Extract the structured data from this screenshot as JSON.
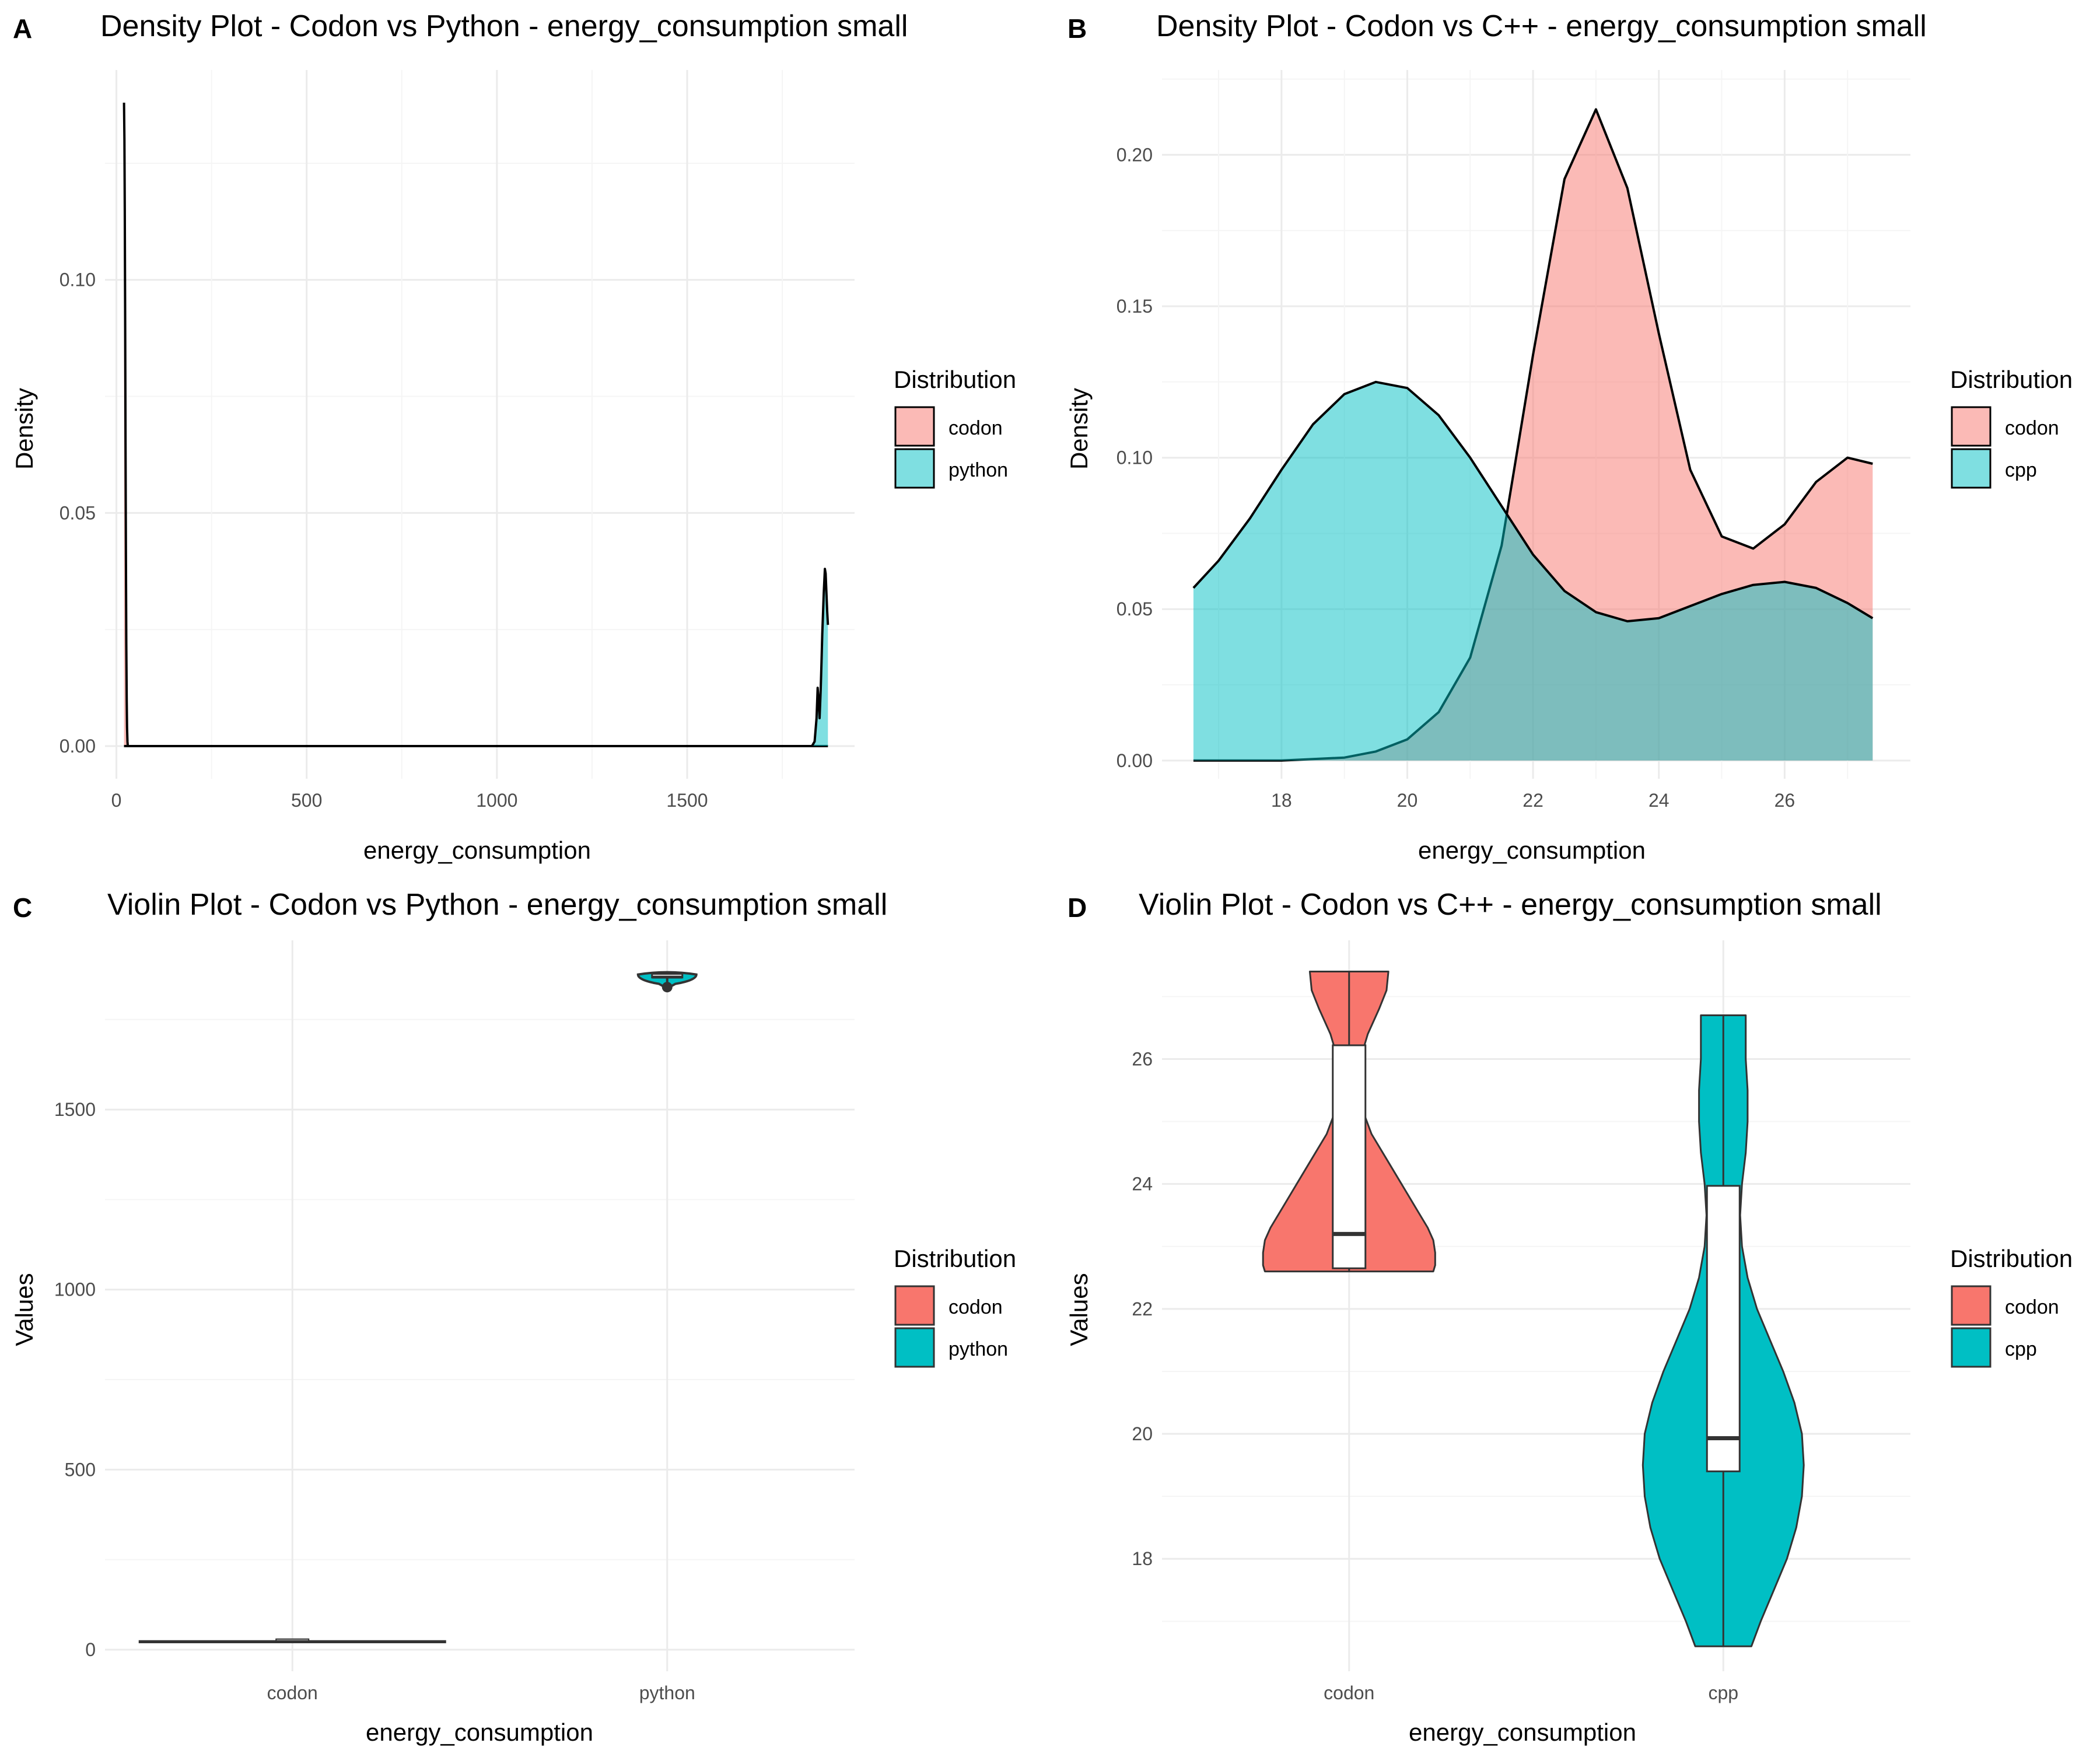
{
  "colors": {
    "codon": "#F8766D",
    "other": "#00BFC4",
    "grid_major": "#ebebeb",
    "grid_minor": "#f5f5f5",
    "outline": "#000000",
    "box_outline": "#333333"
  },
  "panels": {
    "A": {
      "tag": "A",
      "title": "Density Plot - Codon vs Python - energy_consumption small",
      "xlabel": "energy_consumption",
      "ylabel": "Density",
      "legend_title": "Distribution",
      "legend_labels": [
        "codon",
        "python"
      ]
    },
    "B": {
      "tag": "B",
      "title": "Density Plot - Codon vs C++ - energy_consumption small",
      "xlabel": "energy_consumption",
      "ylabel": "Density",
      "legend_title": "Distribution",
      "legend_labels": [
        "codon",
        "cpp"
      ]
    },
    "C": {
      "tag": "C",
      "title": "Violin Plot - Codon vs Python - energy_consumption small",
      "xlabel": "energy_consumption",
      "ylabel": "Values",
      "legend_title": "Distribution",
      "legend_labels": [
        "codon",
        "python"
      ]
    },
    "D": {
      "tag": "D",
      "title": "Violin Plot - Codon vs C++ - energy_consumption small",
      "xlabel": "energy_consumption",
      "ylabel": "Values",
      "legend_title": "Distribution",
      "legend_labels": [
        "codon",
        "cpp"
      ]
    }
  },
  "chart_data": [
    {
      "panel": "A",
      "type": "area",
      "xlim": [
        -30,
        1940
      ],
      "ylim": [
        -0.007,
        0.145
      ],
      "x_ticks": [
        0,
        500,
        1000,
        1500
      ],
      "y_ticks": [
        0.0,
        0.05,
        0.1
      ],
      "y_tick_labels": [
        "0.00",
        "0.05",
        "0.10"
      ],
      "series": [
        {
          "name": "codon",
          "x": [
            20,
            21,
            22,
            23,
            24,
            25,
            26,
            27,
            28,
            29,
            30
          ],
          "values": [
            0.138,
            0.13,
            0.115,
            0.09,
            0.065,
            0.04,
            0.022,
            0.01,
            0.004,
            0.001,
            0.0
          ]
        },
        {
          "name": "python",
          "x": [
            1828,
            1835,
            1840,
            1843,
            1846,
            1848,
            1851,
            1853,
            1855,
            1859,
            1862,
            1864,
            1866,
            1868,
            1870
          ],
          "values": [
            0.0,
            0.001,
            0.006,
            0.0125,
            0.009,
            0.006,
            0.012,
            0.018,
            0.024,
            0.033,
            0.038,
            0.037,
            0.033,
            0.029,
            0.026
          ]
        }
      ]
    },
    {
      "panel": "B",
      "type": "area",
      "xlim": [
        16.1,
        28.0
      ],
      "ylim": [
        -0.006,
        0.228
      ],
      "x_ticks": [
        18,
        20,
        22,
        24,
        26
      ],
      "y_ticks": [
        0.0,
        0.05,
        0.1,
        0.15,
        0.2
      ],
      "y_tick_labels": [
        "0.00",
        "0.05",
        "0.10",
        "0.15",
        "0.20"
      ],
      "series": [
        {
          "name": "codon",
          "x": [
            16.6,
            18.0,
            18.5,
            19.0,
            19.5,
            20.0,
            20.5,
            21.0,
            21.5,
            22.0,
            22.5,
            23.0,
            23.5,
            24.0,
            24.5,
            25.0,
            25.5,
            26.0,
            26.5,
            27.0,
            27.4
          ],
          "values": [
            0.0,
            0.0,
            0.0005,
            0.001,
            0.003,
            0.007,
            0.016,
            0.034,
            0.071,
            0.134,
            0.192,
            0.215,
            0.189,
            0.141,
            0.096,
            0.074,
            0.07,
            0.078,
            0.092,
            0.1,
            0.098
          ]
        },
        {
          "name": "cpp",
          "x": [
            16.6,
            17.0,
            17.5,
            18.0,
            18.5,
            19.0,
            19.5,
            20.0,
            20.5,
            21.0,
            21.5,
            22.0,
            22.5,
            23.0,
            23.5,
            24.0,
            24.5,
            25.0,
            25.5,
            26.0,
            26.5,
            27.0,
            27.4
          ],
          "values": [
            0.057,
            0.066,
            0.08,
            0.096,
            0.111,
            0.121,
            0.125,
            0.123,
            0.114,
            0.1,
            0.084,
            0.068,
            0.056,
            0.049,
            0.046,
            0.047,
            0.051,
            0.055,
            0.058,
            0.059,
            0.057,
            0.052,
            0.047
          ]
        }
      ]
    },
    {
      "panel": "C",
      "type": "violin",
      "categories": [
        "codon",
        "python"
      ],
      "ylim": [
        -60,
        1970
      ],
      "y_ticks": [
        0,
        500,
        1000,
        1500
      ],
      "y_tick_labels": [
        "0",
        "500",
        "1000",
        "1500"
      ],
      "series": [
        {
          "name": "codon",
          "y_min": 17,
          "y_max": 27,
          "q1": 22.7,
          "median": 23.2,
          "q3": 26.2
        },
        {
          "name": "python",
          "y_min": 1840,
          "y_max": 1875,
          "q1": 1862,
          "median": 1868,
          "q3": 1872
        }
      ]
    },
    {
      "panel": "D",
      "type": "violin",
      "categories": [
        "codon",
        "cpp"
      ],
      "ylim": [
        16.2,
        27.9
      ],
      "y_ticks": [
        18,
        20,
        22,
        24,
        26
      ],
      "y_tick_labels": [
        "18",
        "20",
        "22",
        "24",
        "26"
      ],
      "series": [
        {
          "name": "codon",
          "y": [
            22.6,
            22.7,
            22.9,
            23.1,
            23.3,
            23.6,
            24.0,
            24.4,
            24.8,
            25.2,
            25.6,
            26.0,
            26.4,
            26.8,
            27.1,
            27.4
          ],
          "width": [
            0.45,
            0.46,
            0.46,
            0.45,
            0.42,
            0.36,
            0.28,
            0.2,
            0.12,
            0.07,
            0.05,
            0.06,
            0.1,
            0.16,
            0.2,
            0.21
          ],
          "q1": 22.65,
          "median": 23.2,
          "q3": 26.22
        },
        {
          "name": "cpp",
          "y": [
            16.6,
            17.0,
            17.5,
            18.0,
            18.5,
            19.0,
            19.5,
            20.0,
            20.5,
            21.0,
            21.5,
            22.0,
            22.5,
            23.0,
            23.5,
            24.0,
            24.5,
            25.0,
            25.5,
            26.0,
            26.4,
            26.7
          ],
          "width": [
            0.15,
            0.2,
            0.27,
            0.34,
            0.39,
            0.42,
            0.43,
            0.42,
            0.38,
            0.32,
            0.25,
            0.18,
            0.13,
            0.1,
            0.09,
            0.1,
            0.12,
            0.13,
            0.13,
            0.12,
            0.12,
            0.12
          ],
          "q1": 19.4,
          "median": 19.93,
          "q3": 23.97
        }
      ]
    }
  ]
}
